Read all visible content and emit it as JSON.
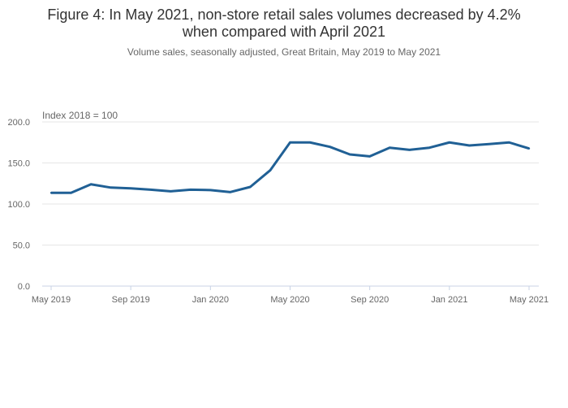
{
  "chart_data": {
    "type": "line",
    "title_line1": "Figure 4: In May 2021, non-store retail sales volumes decreased by 4.2%",
    "title_line2": "when compared with April 2021",
    "subtitle": "Volume sales, seasonally adjusted, Great Britain, May 2019 to May 2021",
    "ylabel": "Index 2018 = 100",
    "xlabel": "",
    "ylim": [
      0,
      200
    ],
    "yticks": [
      "0.0",
      "50.0",
      "100.0",
      "150.0",
      "200.0"
    ],
    "xticks": [
      {
        "label": "May 2019",
        "index": 0
      },
      {
        "label": "Sep 2019",
        "index": 4
      },
      {
        "label": "Jan 2020",
        "index": 8
      },
      {
        "label": "May 2020",
        "index": 12
      },
      {
        "label": "Sep 2020",
        "index": 16
      },
      {
        "label": "Jan 2021",
        "index": 20
      },
      {
        "label": "May 2021",
        "index": 24
      }
    ],
    "grid": true,
    "series": [
      {
        "name": "Non-store retail sales volumes",
        "color": "#206095",
        "x": [
          "May 2019",
          "Jun 2019",
          "Jul 2019",
          "Aug 2019",
          "Sep 2019",
          "Oct 2019",
          "Nov 2019",
          "Dec 2019",
          "Jan 2020",
          "Feb 2020",
          "Mar 2020",
          "Apr 2020",
          "May 2020",
          "Jun 2020",
          "Jul 2020",
          "Aug 2020",
          "Sep 2020",
          "Oct 2020",
          "Nov 2020",
          "Dec 2020",
          "Jan 2021",
          "Feb 2021",
          "Mar 2021",
          "Apr 2021",
          "May 2021"
        ],
        "values": [
          113.6,
          113.6,
          124.0,
          120.0,
          119.0,
          117.5,
          115.5,
          117.5,
          117.0,
          114.5,
          120.8,
          141.0,
          175.0,
          175.0,
          169.6,
          160.4,
          158.0,
          168.6,
          166.0,
          168.6,
          175.0,
          171.3,
          173.0,
          175.0,
          167.6
        ]
      }
    ]
  }
}
